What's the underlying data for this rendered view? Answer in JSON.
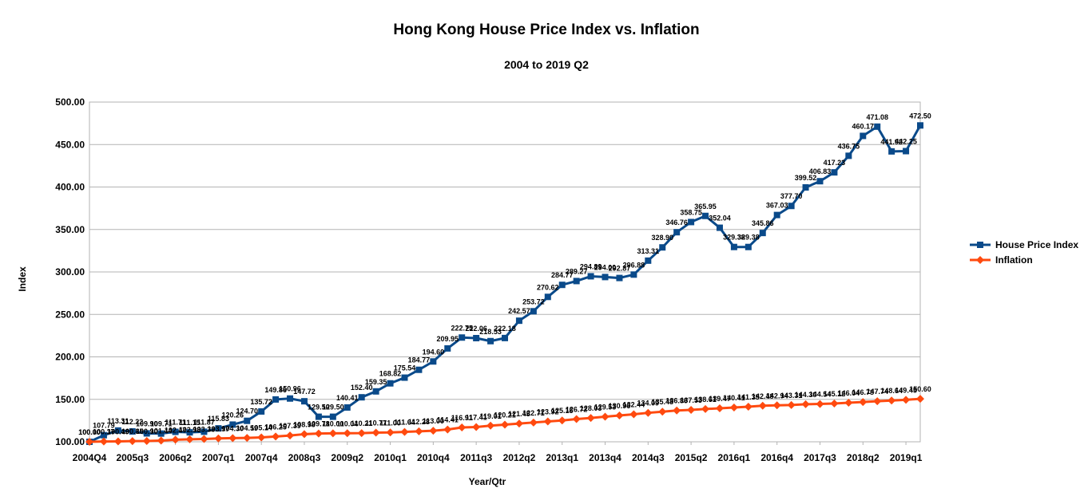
{
  "chart_data": {
    "type": "line",
    "title": "Hong Kong House Price Index vs. Inflation",
    "subtitle": "2004 to 2019 Q2",
    "xlabel": "Year/Qtr",
    "ylabel": "Index",
    "ylim": [
      100,
      500
    ],
    "yticks": [
      "100.00",
      "150.00",
      "200.00",
      "250.00",
      "300.00",
      "350.00",
      "400.00",
      "450.00",
      "500.00"
    ],
    "x_tick_labels": [
      {
        "index": 0,
        "label": "2004Q4"
      },
      {
        "index": 3,
        "label": "2005q3"
      },
      {
        "index": 6,
        "label": "2006q2"
      },
      {
        "index": 9,
        "label": "2007q1"
      },
      {
        "index": 12,
        "label": "2007q4"
      },
      {
        "index": 15,
        "label": "2008q3"
      },
      {
        "index": 18,
        "label": "2009q2"
      },
      {
        "index": 21,
        "label": "2010q1"
      },
      {
        "index": 24,
        "label": "2010q4"
      },
      {
        "index": 27,
        "label": "2011q3"
      },
      {
        "index": 30,
        "label": "2012q2"
      },
      {
        "index": 33,
        "label": "2013q1"
      },
      {
        "index": 36,
        "label": "2013q4"
      },
      {
        "index": 39,
        "label": "2014q3"
      },
      {
        "index": 42,
        "label": "2015q2"
      },
      {
        "index": 45,
        "label": "2016q1"
      },
      {
        "index": 48,
        "label": "2016q4"
      },
      {
        "index": 51,
        "label": "2017q3"
      },
      {
        "index": 54,
        "label": "2018q2"
      },
      {
        "index": 57,
        "label": "2019q1"
      }
    ],
    "grid": true,
    "legend_position": "right",
    "series": [
      {
        "name": "House Price Index",
        "color": "#0a4a8a",
        "marker": "square",
        "values": [
          100.0,
          107.79,
          113.31,
          112.22,
          109.9,
          109.71,
          111.71,
          111.15,
          111.87,
          115.83,
          120.26,
          124.7,
          135.72,
          149.86,
          150.96,
          147.72,
          129.5,
          129.5,
          140.41,
          152.4,
          159.35,
          168.82,
          175.54,
          184.77,
          194.6,
          209.95,
          222.75,
          222.06,
          218.53,
          222.18,
          242.57,
          253.72,
          270.62,
          284.77,
          289.27,
          294.89,
          294.0,
          292.87,
          296.88,
          313.31,
          328.9,
          346.76,
          358.75,
          365.95,
          352.04,
          329.38,
          329.38,
          345.86,
          367.03,
          377.7,
          399.52,
          406.83,
          417.23,
          436.75,
          460.17,
          471.08,
          441.92,
          442.25,
          472.5
        ]
      },
      {
        "name": "Inflation",
        "color": "#ff4a0f",
        "marker": "diamond",
        "values": [
          100.0,
          100.37,
          100.49,
          100.85,
          100.9,
          101.44,
          102.47,
          102.98,
          103.33,
          103.97,
          104.3,
          104.59,
          105.14,
          106.25,
          107.39,
          108.98,
          109.78,
          110.0,
          110.04,
          110.21,
          110.77,
          111.0,
          111.64,
          112.28,
          113.0,
          114.41,
          116.91,
          117.41,
          119.01,
          120.21,
          121.45,
          122.71,
          123.92,
          125.15,
          126.72,
          128.03,
          129.53,
          130.96,
          132.44,
          134.09,
          135.48,
          136.86,
          137.53,
          138.61,
          139.47,
          140.41,
          141.35,
          142.48,
          142.94,
          143.31,
          144.3,
          144.54,
          145.12,
          146.04,
          146.78,
          147.74,
          148.64,
          149.45,
          150.6
        ]
      }
    ]
  }
}
